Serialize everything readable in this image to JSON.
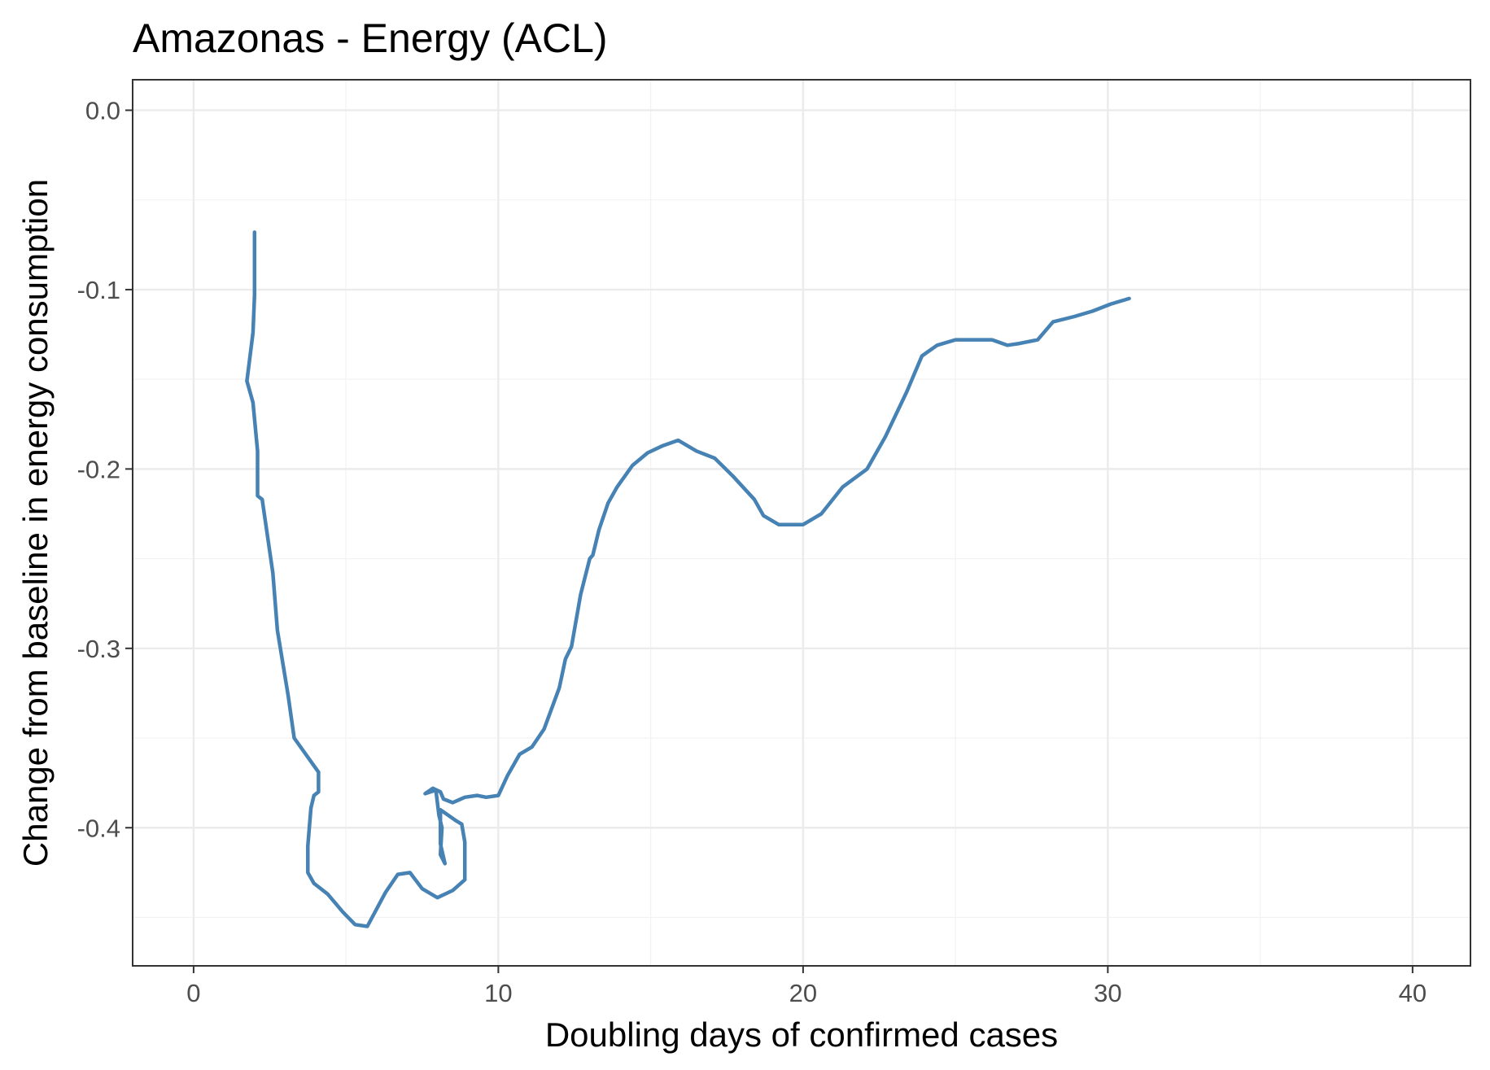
{
  "chart_data": {
    "type": "line",
    "title": "Amazonas - Energy (ACL)",
    "xlabel": "Doubling days of confirmed cases",
    "ylabel": "Change from baseline in energy consumption",
    "xlim": [
      -2,
      41.9
    ],
    "ylim": [
      -0.477,
      0.017
    ],
    "x_ticks": [
      0,
      10,
      20,
      30,
      40
    ],
    "x_tick_labels": [
      "0",
      "10",
      "20",
      "30",
      "40"
    ],
    "y_ticks": [
      0.0,
      -0.1,
      -0.2,
      -0.3,
      -0.4
    ],
    "y_tick_labels": [
      "0.0",
      "-0.1",
      "-0.2",
      "-0.3",
      "-0.4"
    ],
    "x_minor": [
      -2,
      5,
      15,
      25,
      35
    ],
    "y_minor": [
      -0.05,
      -0.15,
      -0.25,
      -0.35,
      -0.45
    ],
    "grid": true,
    "series": [
      {
        "color": "#4682b4",
        "x": [
          2.0,
          2.0,
          1.95,
          1.75,
          1.95,
          2.1,
          2.1,
          2.25,
          2.6,
          2.75,
          3.1,
          3.3,
          4.1,
          4.1,
          3.95,
          3.85,
          3.75,
          3.75,
          3.95,
          4.4,
          4.9,
          5.3,
          5.7,
          6.3,
          6.7,
          7.1,
          7.5,
          8.0,
          8.5,
          8.9,
          8.9,
          8.8,
          8.6,
          8.1,
          8.1,
          8.25,
          8.1,
          8.15,
          8.05,
          7.95,
          7.6,
          7.85,
          8.1,
          8.2,
          8.5,
          8.9,
          9.3,
          9.6,
          10.0,
          10.3,
          10.7,
          11.1,
          11.5,
          12.0,
          12.2,
          12.4,
          12.7,
          13.0,
          13.1,
          13.3,
          13.6,
          13.9,
          14.4,
          14.9,
          15.4,
          15.9,
          16.5,
          17.1,
          17.7,
          18.4,
          18.7,
          19.2,
          19.6,
          20.0,
          20.6,
          21.3,
          22.1,
          22.7,
          23.4,
          23.9,
          24.4,
          25.0,
          25.7,
          26.2,
          26.7,
          27.1,
          27.7,
          28.2,
          28.9,
          29.5,
          30.1,
          30.7
        ],
        "y": [
          -0.068,
          -0.103,
          -0.124,
          -0.151,
          -0.163,
          -0.19,
          -0.215,
          -0.217,
          -0.258,
          -0.29,
          -0.326,
          -0.35,
          -0.369,
          -0.38,
          -0.382,
          -0.389,
          -0.41,
          -0.425,
          -0.431,
          -0.437,
          -0.447,
          -0.454,
          -0.455,
          -0.436,
          -0.426,
          -0.425,
          -0.434,
          -0.439,
          -0.435,
          -0.429,
          -0.408,
          -0.398,
          -0.396,
          -0.39,
          -0.409,
          -0.42,
          -0.415,
          -0.4,
          -0.393,
          -0.379,
          -0.381,
          -0.378,
          -0.38,
          -0.384,
          -0.386,
          -0.383,
          -0.382,
          -0.383,
          -0.382,
          -0.371,
          -0.359,
          -0.355,
          -0.345,
          -0.322,
          -0.306,
          -0.299,
          -0.27,
          -0.25,
          -0.248,
          -0.234,
          -0.219,
          -0.21,
          -0.198,
          -0.191,
          -0.187,
          -0.184,
          -0.19,
          -0.194,
          -0.204,
          -0.217,
          -0.226,
          -0.231,
          -0.231,
          -0.231,
          -0.225,
          -0.21,
          -0.2,
          -0.182,
          -0.157,
          -0.137,
          -0.131,
          -0.128,
          -0.128,
          -0.128,
          -0.131,
          -0.13,
          -0.128,
          -0.118,
          -0.115,
          -0.112,
          -0.108,
          -0.105
        ]
      }
    ]
  }
}
